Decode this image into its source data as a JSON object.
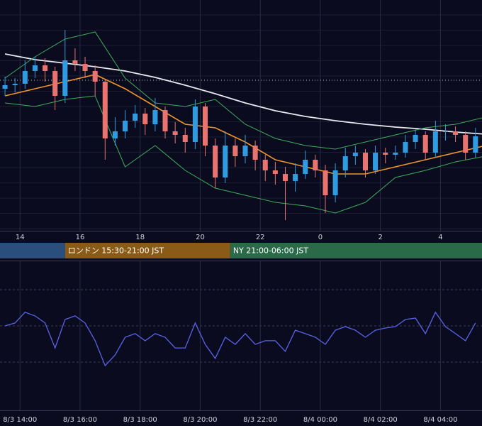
{
  "chart_data": [
    {
      "type": "candlestick",
      "xlim": [
        800,
        1763
      ],
      "ylim": [
        5,
        330
      ],
      "xticks": [
        {
          "value": 840,
          "label": "14"
        },
        {
          "value": 960,
          "label": "16"
        },
        {
          "value": 1080,
          "label": "18"
        },
        {
          "value": 1200,
          "label": "20"
        },
        {
          "value": 1320,
          "label": "22"
        },
        {
          "value": 1440,
          "label": "0"
        },
        {
          "value": 1560,
          "label": "2"
        },
        {
          "value": 1680,
          "label": "4"
        }
      ],
      "grid": true,
      "up_color": "#2f9be0",
      "down_color": "#e8736f",
      "x": [
        810,
        830,
        850,
        870,
        890,
        910,
        930,
        950,
        970,
        990,
        1010,
        1030,
        1050,
        1070,
        1090,
        1110,
        1130,
        1150,
        1170,
        1190,
        1210,
        1230,
        1250,
        1270,
        1290,
        1310,
        1330,
        1350,
        1370,
        1390,
        1410,
        1430,
        1450,
        1470,
        1490,
        1510,
        1530,
        1550,
        1570,
        1590,
        1610,
        1630,
        1650,
        1670,
        1690,
        1710,
        1730,
        1750
      ],
      "open": [
        205,
        210,
        212,
        230,
        238,
        230,
        195,
        245,
        240,
        230,
        215,
        135,
        145,
        160,
        170,
        155,
        175,
        145,
        140,
        130,
        180,
        125,
        80,
        125,
        110,
        125,
        105,
        90,
        85,
        75,
        85,
        105,
        90,
        55,
        90,
        110,
        115,
        90,
        115,
        112,
        115,
        130,
        140,
        115,
        145,
        145,
        140,
        115
      ],
      "high": [
        222,
        220,
        245,
        250,
        248,
        236,
        288,
        262,
        250,
        238,
        218,
        165,
        175,
        182,
        178,
        192,
        180,
        158,
        150,
        190,
        185,
        135,
        145,
        135,
        140,
        132,
        112,
        102,
        95,
        100,
        118,
        112,
        98,
        100,
        122,
        125,
        120,
        125,
        122,
        125,
        140,
        148,
        145,
        160,
        155,
        152,
        145,
        150
      ],
      "low": [
        195,
        200,
        205,
        220,
        215,
        175,
        185,
        230,
        220,
        195,
        105,
        125,
        135,
        150,
        140,
        145,
        135,
        128,
        115,
        120,
        110,
        65,
        72,
        95,
        100,
        90,
        75,
        70,
        20,
        60,
        78,
        80,
        30,
        45,
        80,
        98,
        80,
        85,
        100,
        105,
        108,
        120,
        105,
        108,
        132,
        130,
        105,
        108
      ],
      "close": [
        210,
        212,
        230,
        238,
        230,
        195,
        245,
        240,
        230,
        215,
        135,
        145,
        160,
        170,
        155,
        175,
        145,
        140,
        130,
        180,
        125,
        80,
        125,
        110,
        125,
        105,
        90,
        85,
        75,
        85,
        105,
        90,
        55,
        90,
        110,
        115,
        90,
        115,
        112,
        115,
        130,
        140,
        115,
        145,
        145,
        140,
        115,
        138
      ],
      "series": [
        {
          "color": "#e8e8ee",
          "x": [
            810,
            870,
            930,
            990,
            1050,
            1110,
            1170,
            1230,
            1290,
            1350,
            1410,
            1470,
            1530,
            1590,
            1650,
            1710,
            1770
          ],
          "values": [
            254,
            246,
            241,
            236,
            230,
            221,
            210,
            198,
            185,
            174,
            166,
            160,
            155,
            151,
            148,
            144,
            141
          ]
        },
        {
          "color": "#f0952a",
          "x": [
            810,
            870,
            930,
            990,
            1050,
            1110,
            1170,
            1230,
            1290,
            1350,
            1410,
            1470,
            1530,
            1590,
            1650,
            1710,
            1770
          ],
          "values": [
            195,
            205,
            215,
            225,
            205,
            180,
            155,
            150,
            130,
            105,
            95,
            85,
            85,
            95,
            105,
            115,
            125
          ]
        },
        {
          "color": "#3fae5a",
          "x": [
            810,
            870,
            930,
            990,
            1050,
            1110,
            1170,
            1230,
            1290,
            1350,
            1410,
            1470,
            1530,
            1590,
            1650,
            1710,
            1770
          ],
          "values": [
            220,
            250,
            275,
            285,
            220,
            185,
            180,
            190,
            155,
            135,
            125,
            120,
            130,
            140,
            150,
            155,
            165
          ]
        },
        {
          "color": "#3fae5a",
          "x": [
            810,
            870,
            930,
            990,
            1050,
            1110,
            1170,
            1230,
            1290,
            1350,
            1410,
            1470,
            1530,
            1590,
            1650,
            1710,
            1770
          ],
          "values": [
            185,
            180,
            190,
            195,
            95,
            125,
            90,
            65,
            55,
            45,
            40,
            30,
            45,
            80,
            90,
            102,
            110
          ]
        }
      ],
      "hline": 217,
      "sessions": [
        {
          "start": 540,
          "end": 930,
          "color": "#2b4f7d"
        },
        {
          "start": 930,
          "end": 1260,
          "color": "#8a5a17",
          "label": "ロンドン 15:30-21:00 JST"
        },
        {
          "start": 1260,
          "end": 1800,
          "color": "#2a6a48",
          "label": "NY 21:00-06:00 JST"
        }
      ]
    },
    {
      "type": "line",
      "xlim": [
        800,
        1763
      ],
      "ylim": [
        3.3,
        84.9
      ],
      "xticks": [
        {
          "value": 840,
          "label": "8/3 14:00"
        },
        {
          "value": 960,
          "label": "8/3 16:00"
        },
        {
          "value": 1080,
          "label": "8/3 18:00"
        },
        {
          "value": 1200,
          "label": "8/3 20:00"
        },
        {
          "value": 1320,
          "label": "8/3 22:00"
        },
        {
          "value": 1440,
          "label": "8/4 00:00"
        },
        {
          "value": 1560,
          "label": "8/4 02:00"
        },
        {
          "value": 1680,
          "label": "8/4 04:00"
        }
      ],
      "hlines": [
        30,
        50,
        70
      ],
      "color": "#5a63e8",
      "x": [
        810,
        830,
        850,
        870,
        890,
        910,
        930,
        950,
        970,
        990,
        1010,
        1030,
        1050,
        1070,
        1090,
        1110,
        1130,
        1150,
        1170,
        1190,
        1210,
        1230,
        1250,
        1270,
        1290,
        1310,
        1330,
        1350,
        1370,
        1390,
        1410,
        1430,
        1450,
        1470,
        1490,
        1510,
        1530,
        1550,
        1570,
        1590,
        1610,
        1630,
        1650,
        1670,
        1690,
        1710,
        1730,
        1750
      ],
      "values": [
        50,
        51.6,
        57.5,
        55.5,
        51.6,
        37.8,
        53.5,
        55.5,
        51.6,
        41.8,
        28,
        33.9,
        43.7,
        45.7,
        41.8,
        45.7,
        43.7,
        37.8,
        37.8,
        51.6,
        39.8,
        32,
        43.7,
        39.8,
        45.7,
        39.8,
        41.8,
        41.8,
        35.9,
        47.6,
        45.7,
        43.7,
        39.8,
        47.6,
        49.6,
        47.6,
        43.7,
        47.6,
        48.8,
        49.6,
        53.5,
        54.3,
        45.7,
        57.5,
        49.6,
        45.7,
        41.8,
        51.6
      ]
    }
  ]
}
